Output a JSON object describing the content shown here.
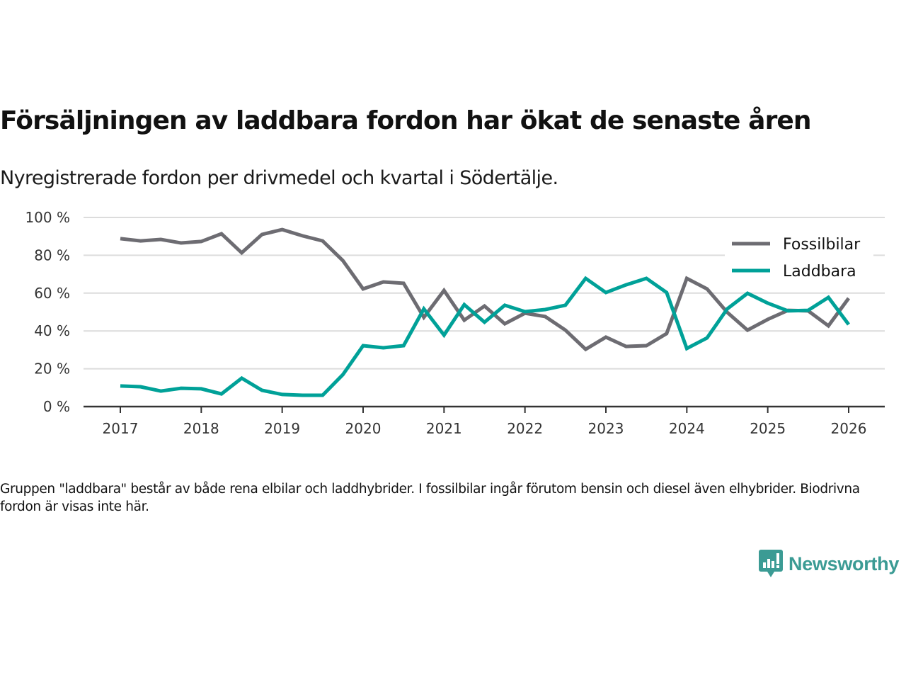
{
  "title": "Försäljningen av laddbara fordon har ökat de senaste åren",
  "subtitle": "Nyregistrerade fordon per drivmedel och kvartal i Södertälje.",
  "note": "Gruppen \"laddbara\" består av både rena elbilar och laddhybrider. I fossilbilar ingår förutom bensin och diesel även elhybrider. Biodrivna fordon är visas inte här.",
  "brand": {
    "name": "Newsworthy",
    "icon": "newsworthy-logo-icon",
    "color": "#3b9b94"
  },
  "chart_data": {
    "type": "line",
    "title": "Försäljningen av laddbara fordon har ökat de senaste åren",
    "subtitle": "Nyregistrerade fordon per drivmedel och kvartal i Södertälje.",
    "xlabel": "",
    "ylabel": "",
    "x_start": "2017 Q1",
    "x_step": "quarter",
    "x": [
      "2017Q1",
      "2017Q2",
      "2017Q3",
      "2017Q4",
      "2018Q1",
      "2018Q2",
      "2018Q3",
      "2018Q4",
      "2019Q1",
      "2019Q2",
      "2019Q3",
      "2019Q4",
      "2020Q1",
      "2020Q2",
      "2020Q3",
      "2020Q4",
      "2021Q1",
      "2021Q2",
      "2021Q3",
      "2021Q4",
      "2022Q1",
      "2022Q2",
      "2022Q3",
      "2022Q4",
      "2023Q1",
      "2023Q2",
      "2023Q3",
      "2023Q4",
      "2024Q1",
      "2024Q2",
      "2024Q3",
      "2024Q4",
      "2025Q1",
      "2025Q2",
      "2025Q3",
      "2025Q4",
      "2026Q1"
    ],
    "x_ticks": [
      "2017",
      "2018",
      "2019",
      "2020",
      "2021",
      "2022",
      "2023",
      "2024",
      "2025",
      "2026"
    ],
    "y_ticks": [
      "0 %",
      "20 %",
      "40 %",
      "60 %",
      "80 %",
      "100 %"
    ],
    "y_tick_values": [
      0,
      20,
      40,
      60,
      80,
      100
    ],
    "ylim": [
      0,
      100
    ],
    "grid": true,
    "legend_position": "top-right",
    "series": [
      {
        "name": "Fossilbilar",
        "color": "#6d6c72",
        "values": [
          88.8,
          87.6,
          88.4,
          86.5,
          87.3,
          91.4,
          81.3,
          91.0,
          93.6,
          90.3,
          87.6,
          77.2,
          62.2,
          65.9,
          65.2,
          47.2,
          61.4,
          45.7,
          53.2,
          43.8,
          49.4,
          47.6,
          40.4,
          30.3,
          36.7,
          31.8,
          32.2,
          38.6,
          67.8,
          62.2,
          49.8,
          40.4,
          46.1,
          50.9,
          50.6,
          42.7,
          57.3
        ]
      },
      {
        "name": "Laddbara",
        "color": "#00a198",
        "values": [
          10.9,
          10.5,
          8.2,
          9.7,
          9.4,
          6.7,
          15.0,
          8.6,
          6.4,
          6.0,
          6.0,
          16.9,
          32.2,
          31.1,
          32.2,
          51.7,
          37.8,
          53.9,
          44.6,
          53.6,
          50.2,
          51.3,
          53.6,
          67.8,
          60.3,
          64.4,
          67.8,
          60.3,
          30.7,
          36.3,
          51.7,
          59.9,
          54.7,
          50.6,
          50.9,
          57.7,
          43.4
        ]
      }
    ]
  }
}
